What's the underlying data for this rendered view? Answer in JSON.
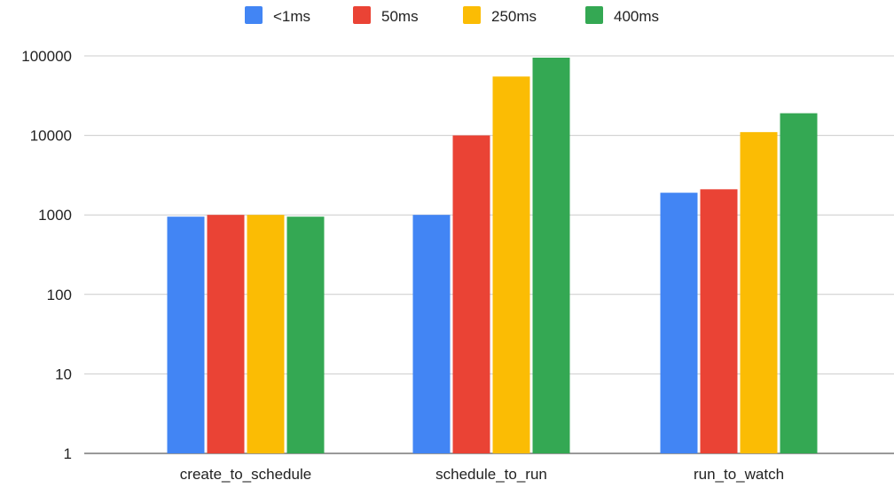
{
  "chart_data": {
    "type": "bar",
    "title": "",
    "xlabel": "",
    "ylabel": "",
    "scale": "log",
    "grid": true,
    "legend_position": "top",
    "ylim": [
      1,
      100000
    ],
    "y_ticks": [
      "1",
      "10",
      "100",
      "1000",
      "10000",
      "100000"
    ],
    "categories": [
      "create_to_schedule",
      "schedule_to_run",
      "run_to_watch"
    ],
    "series": [
      {
        "name": "<1ms",
        "color": "#4285F4",
        "values": [
          950,
          1000,
          1900
        ]
      },
      {
        "name": "50ms",
        "color": "#EA4335",
        "values": [
          1000,
          10000,
          2100
        ]
      },
      {
        "name": "250ms",
        "color": "#FBBC04",
        "values": [
          1000,
          55000,
          11000
        ]
      },
      {
        "name": "400ms",
        "color": "#34A853",
        "values": [
          950,
          95000,
          19000
        ]
      }
    ]
  }
}
